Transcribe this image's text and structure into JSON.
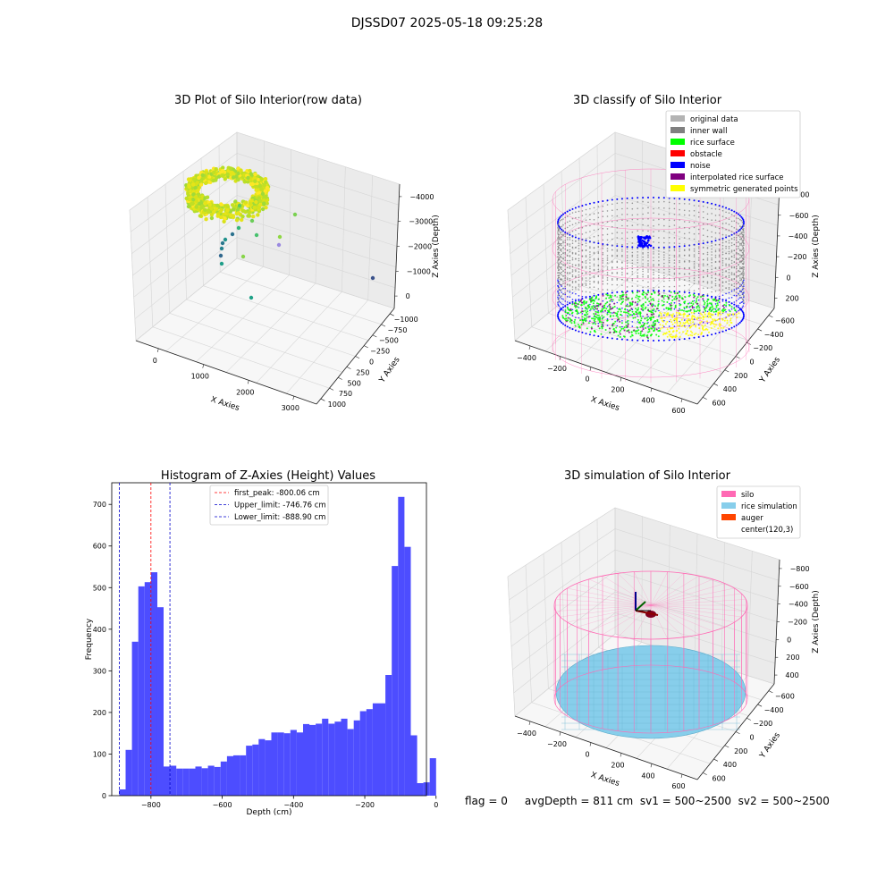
{
  "suptitle": "DJSSD07 2025-05-18 09:25:28",
  "status_text": "flag = 0     avgDepth = 811 cm  sv1 = 500~2500  sv2 = 500~2500",
  "colors": {
    "hist": "#4d4dff",
    "peak_line": "#ff0000",
    "limit_line": "#0000cc",
    "silo": "#ff69b4",
    "rice_sim": "#87ceeb",
    "auger": "#ff4500",
    "original": "#b3b3b3",
    "inner_wall": "#808080",
    "rice_surface": "#00ff00",
    "obstacle": "#ff0000",
    "noise": "#0000ff",
    "interp": "#800080",
    "symmetric": "#ffff00"
  },
  "chart_data": [
    {
      "type": "scatter3d",
      "title": "3D Plot of Silo Interior(row data)",
      "xlabel": "X Axies",
      "ylabel": "Y Axies",
      "zlabel": "Z Axies (Depth)",
      "x_ticks": [
        "0",
        "1000",
        "2000",
        "3000"
      ],
      "y_ticks": [
        "1000",
        "750",
        "500",
        "250",
        "0",
        "−250",
        "−500",
        "−750",
        "−1000"
      ],
      "z_ticks": [
        "0",
        "−1000",
        "−2000",
        "−3000",
        "−4000"
      ],
      "colormap": "viridis"
    },
    {
      "type": "scatter3d",
      "title": "3D classify of Silo Interior",
      "xlabel": "X Axies",
      "ylabel": "Y Axies",
      "zlabel": "Z Axies (Depth)",
      "x_ticks": [
        "−400",
        "−200",
        "0",
        "200",
        "400",
        "600"
      ],
      "y_ticks": [
        "600",
        "400",
        "200",
        "0",
        "−200",
        "−400",
        "−600"
      ],
      "z_ticks": [
        "200",
        "0",
        "−200",
        "−400",
        "−600",
        "−800"
      ],
      "legend": [
        {
          "label": "original data",
          "color": "#b3b3b3"
        },
        {
          "label": "inner wall",
          "color": "#808080"
        },
        {
          "label": "rice surface",
          "color": "#00ff00"
        },
        {
          "label": "obstacle",
          "color": "#ff0000"
        },
        {
          "label": "noise",
          "color": "#0000ff"
        },
        {
          "label": "interpolated rice surface",
          "color": "#800080"
        },
        {
          "label": "symmetric generated points",
          "color": "#ffff00"
        }
      ],
      "legend_position": "top-right"
    },
    {
      "type": "bar",
      "title": "Histogram of Z-Axies (Height) Values",
      "xlabel": "Depth (cm)",
      "ylabel": "Frequency",
      "xlim": [
        -910,
        -27
      ],
      "ylim": [
        0,
        752
      ],
      "x_ticks": [
        -800,
        -600,
        -400,
        -200,
        0
      ],
      "x_tick_labels": [
        "−800",
        "−600",
        "−400",
        "−200",
        "0"
      ],
      "y_ticks": [
        0,
        100,
        200,
        300,
        400,
        500,
        600,
        700
      ],
      "bin_start": -888.9,
      "bin_width": 17.78,
      "values": [
        15,
        110,
        370,
        503,
        513,
        537,
        453,
        70,
        72,
        65,
        65,
        65,
        70,
        66,
        72,
        69,
        82,
        95,
        97,
        97,
        120,
        123,
        136,
        133,
        152,
        152,
        150,
        158,
        152,
        172,
        170,
        173,
        185,
        173,
        178,
        185,
        160,
        181,
        203,
        208,
        222,
        222,
        290,
        552,
        718,
        598,
        145,
        30,
        32,
        90
      ],
      "lines": [
        {
          "label": "first_peak: -800.06 cm",
          "x": -800.06,
          "color": "#ff0000"
        },
        {
          "label": "Upper_limit: -746.76 cm",
          "x": -746.76,
          "color": "#0000cc"
        },
        {
          "label": "Lower_limit: -888.90 cm",
          "x": -888.9,
          "color": "#0000cc"
        }
      ],
      "legend_position": "top-center"
    },
    {
      "type": "surface3d",
      "title": "3D simulation of Silo Interior",
      "xlabel": "X Axies",
      "ylabel": "Y Axies",
      "zlabel": "Z Axies (Depth)",
      "x_ticks": [
        "−400",
        "−200",
        "0",
        "200",
        "400",
        "600"
      ],
      "y_ticks": [
        "600",
        "400",
        "200",
        "0",
        "−200",
        "−400",
        "−600"
      ],
      "z_ticks": [
        "400",
        "200",
        "0",
        "−200",
        "−400",
        "−600",
        "−800"
      ],
      "legend": [
        {
          "label": "silo",
          "color": "#ff69b4"
        },
        {
          "label": "rice simulation",
          "color": "#87ceeb"
        },
        {
          "label": "auger",
          "color": "#ff4500"
        },
        {
          "label": "center(120,3)",
          "color": "#ffffff"
        }
      ],
      "legend_position": "top-right"
    }
  ]
}
